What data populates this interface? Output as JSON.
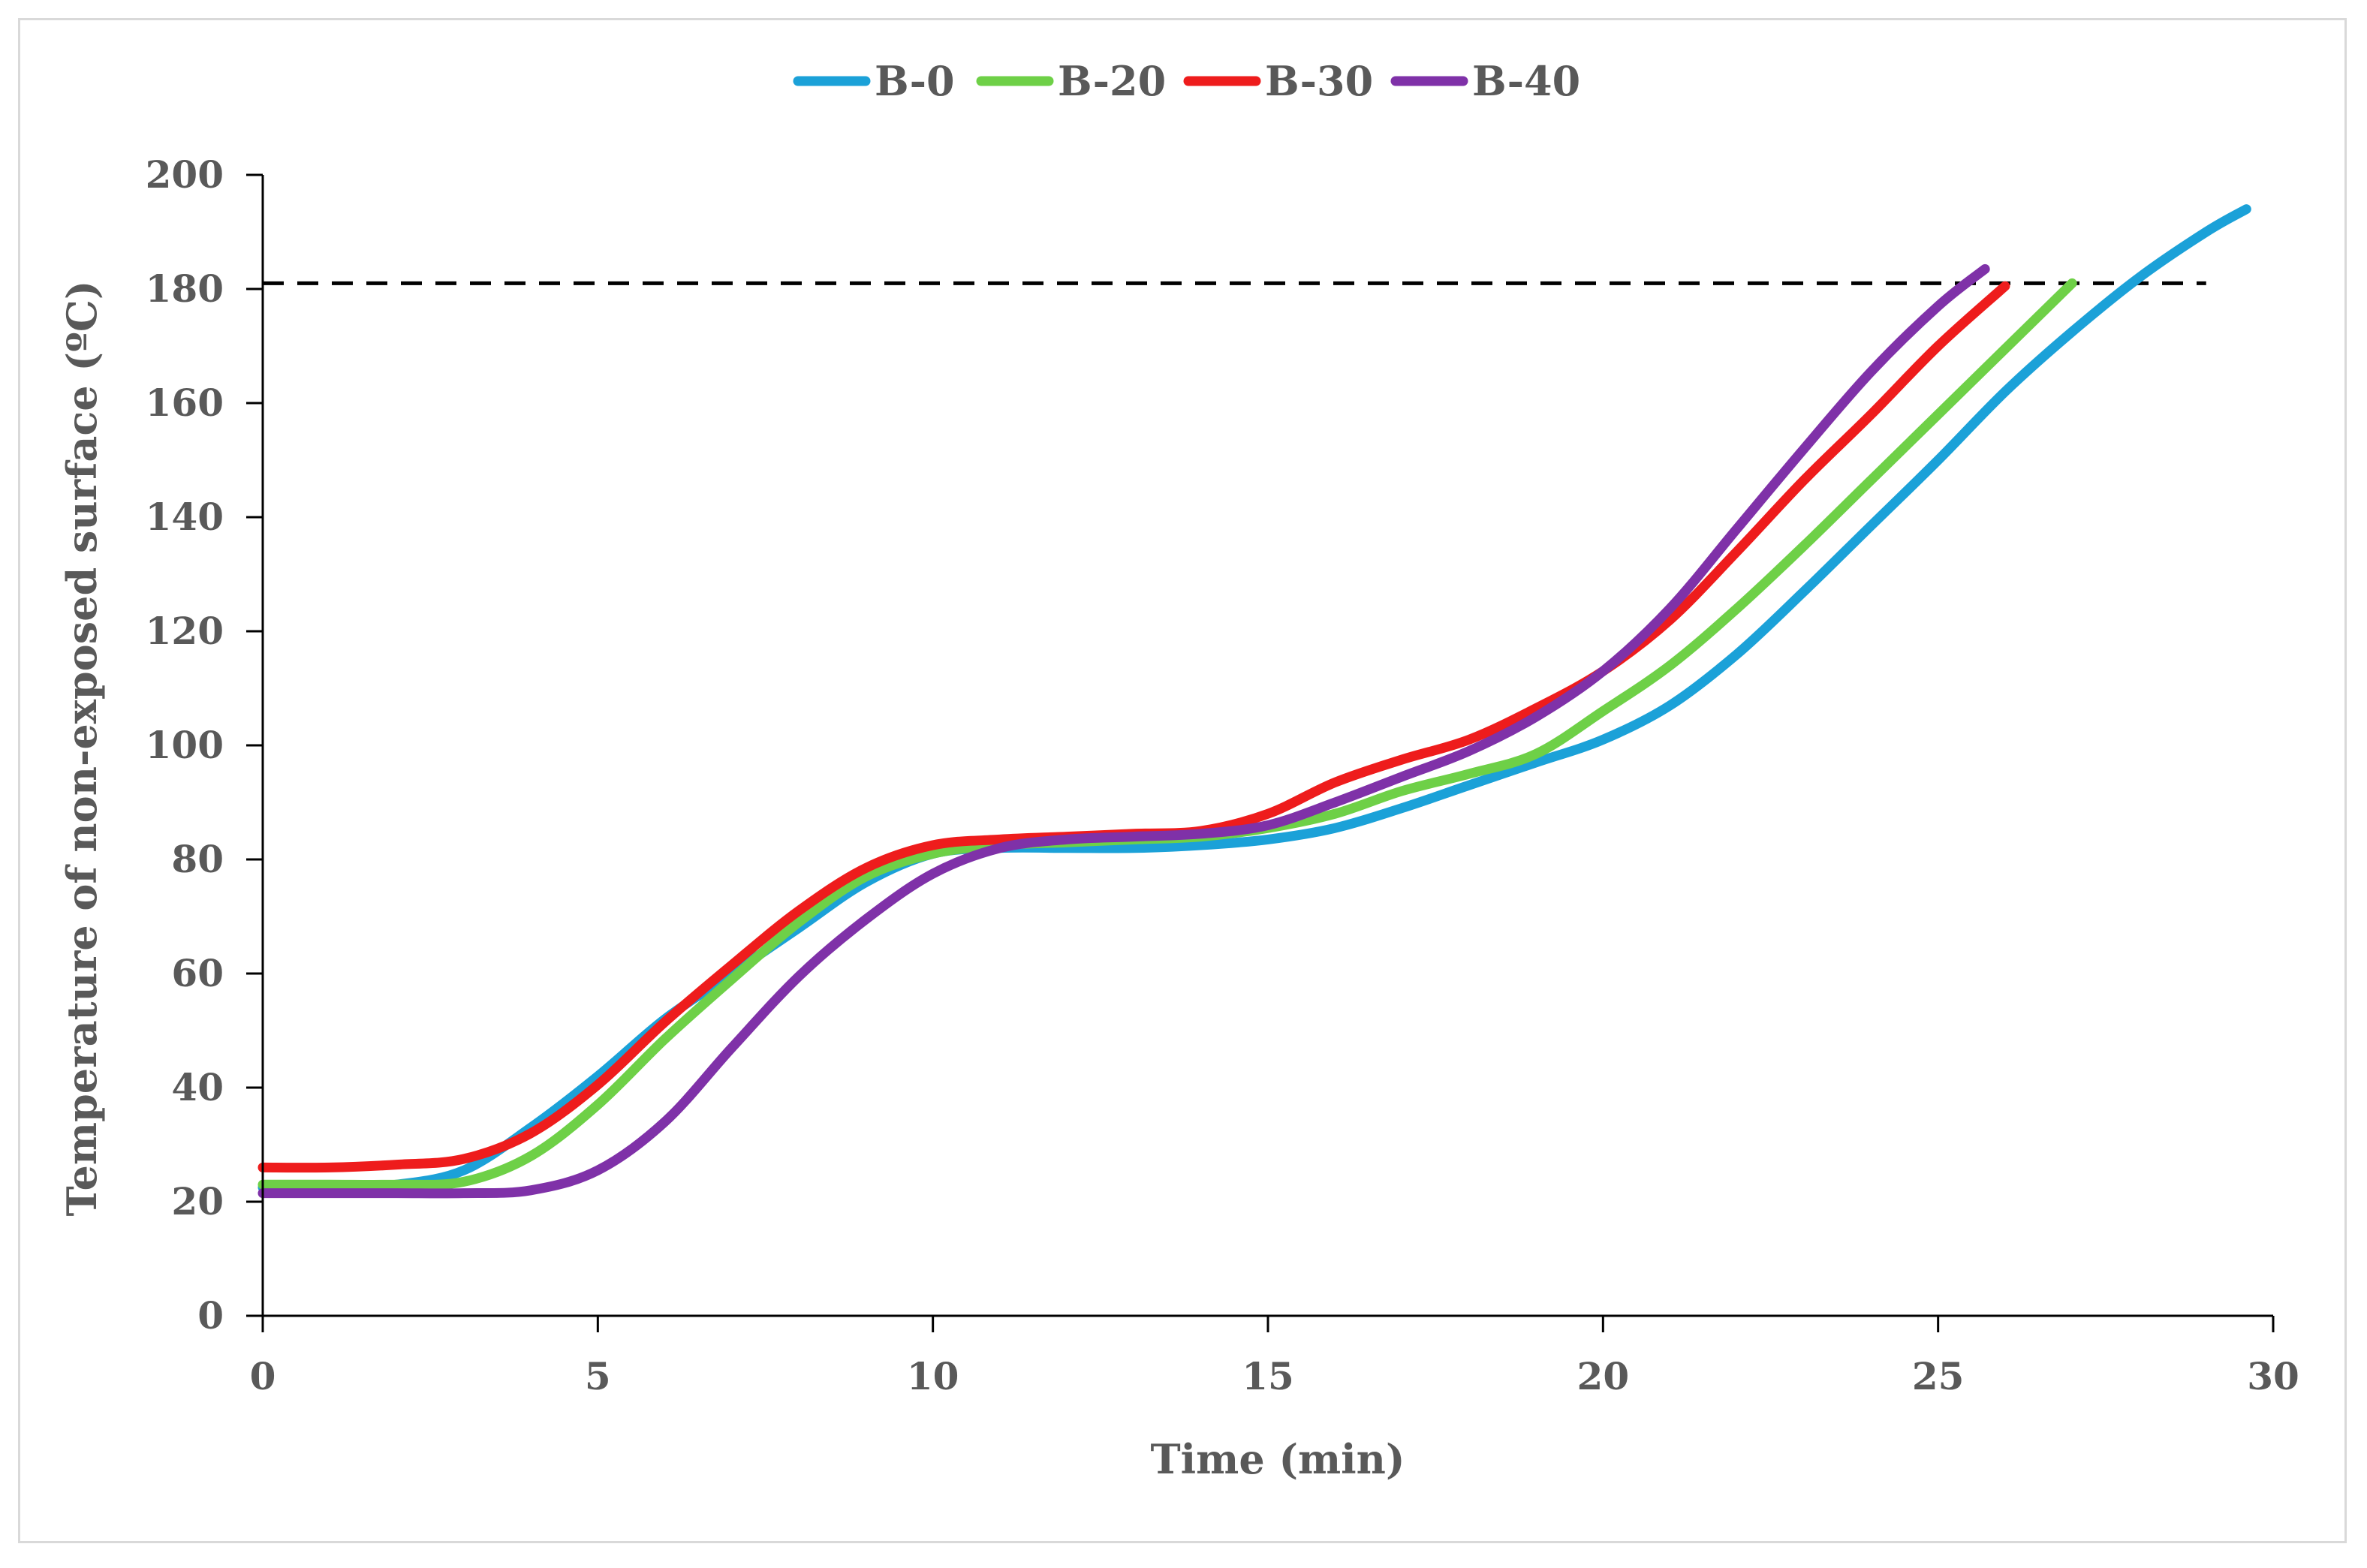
{
  "chart_data": {
    "type": "line",
    "title": "",
    "xlabel": "Time (min)",
    "ylabel": "Temperature of non-exposed surface (ºC)",
    "xlim": [
      0,
      30
    ],
    "ylim": [
      0,
      200
    ],
    "xticks": [
      0,
      5,
      10,
      15,
      20,
      25,
      30
    ],
    "yticks": [
      0,
      20,
      40,
      60,
      80,
      100,
      120,
      140,
      160,
      180,
      200
    ],
    "grid": false,
    "legend_position": "top-center",
    "reference_line": {
      "y": 181,
      "x_start": 0,
      "x_end": 29,
      "style": "dashed",
      "color": "#000000"
    },
    "series": [
      {
        "name": "B-0",
        "color": "#1ba1d8",
        "points": [
          [
            0,
            22.5
          ],
          [
            1,
            22.5
          ],
          [
            2,
            23
          ],
          [
            3,
            25.5
          ],
          [
            4,
            33
          ],
          [
            5,
            42
          ],
          [
            6,
            52
          ],
          [
            7,
            60
          ],
          [
            8,
            68
          ],
          [
            9,
            76
          ],
          [
            10,
            81
          ],
          [
            11,
            82
          ],
          [
            12,
            82
          ],
          [
            13,
            82
          ],
          [
            14,
            82.5
          ],
          [
            15,
            83.5
          ],
          [
            16,
            85.5
          ],
          [
            17,
            89
          ],
          [
            18,
            93
          ],
          [
            19,
            97
          ],
          [
            20,
            101
          ],
          [
            21,
            107
          ],
          [
            22,
            116
          ],
          [
            23,
            127
          ],
          [
            24,
            138.5
          ],
          [
            25,
            150
          ],
          [
            26,
            162
          ],
          [
            27,
            172.5
          ],
          [
            28,
            182
          ],
          [
            29,
            190
          ],
          [
            29.6,
            194
          ]
        ]
      },
      {
        "name": "B-20",
        "color": "#6ed047",
        "points": [
          [
            0,
            23
          ],
          [
            1,
            23
          ],
          [
            2,
            23
          ],
          [
            3,
            23.5
          ],
          [
            4,
            28
          ],
          [
            5,
            37
          ],
          [
            6,
            48.5
          ],
          [
            7,
            59
          ],
          [
            8,
            69
          ],
          [
            9,
            77
          ],
          [
            10,
            81
          ],
          [
            11,
            82.5
          ],
          [
            12,
            83
          ],
          [
            13,
            83.5
          ],
          [
            14,
            84
          ],
          [
            15,
            85.5
          ],
          [
            16,
            88
          ],
          [
            17,
            92
          ],
          [
            18,
            95
          ],
          [
            19,
            98.5
          ],
          [
            20,
            106
          ],
          [
            21,
            114
          ],
          [
            22,
            124
          ],
          [
            23,
            135
          ],
          [
            24,
            146.5
          ],
          [
            25,
            158
          ],
          [
            26,
            169.5
          ],
          [
            27,
            181
          ]
        ]
      },
      {
        "name": "B-30",
        "color": "#ee1c1c",
        "points": [
          [
            0,
            26
          ],
          [
            1,
            26
          ],
          [
            2,
            26.5
          ],
          [
            3,
            27.5
          ],
          [
            4,
            32
          ],
          [
            5,
            40.5
          ],
          [
            6,
            51.5
          ],
          [
            7,
            61.5
          ],
          [
            8,
            71
          ],
          [
            9,
            78.5
          ],
          [
            10,
            82.5
          ],
          [
            11,
            83.5
          ],
          [
            12,
            84
          ],
          [
            13,
            84.5
          ],
          [
            14,
            85
          ],
          [
            15,
            88
          ],
          [
            16,
            93.5
          ],
          [
            17,
            97.5
          ],
          [
            18,
            101
          ],
          [
            19,
            106.5
          ],
          [
            20,
            113
          ],
          [
            21,
            122
          ],
          [
            22,
            134
          ],
          [
            23,
            146.5
          ],
          [
            24,
            158
          ],
          [
            25,
            170
          ],
          [
            26,
            180.5
          ]
        ]
      },
      {
        "name": "B-40",
        "color": "#7f31a8",
        "points": [
          [
            0,
            21.5
          ],
          [
            1,
            21.5
          ],
          [
            2,
            21.5
          ],
          [
            3,
            21.5
          ],
          [
            4,
            22
          ],
          [
            5,
            25.5
          ],
          [
            6,
            34
          ],
          [
            7,
            47
          ],
          [
            8,
            59.5
          ],
          [
            9,
            69.5
          ],
          [
            10,
            77.5
          ],
          [
            11,
            82
          ],
          [
            12,
            83.5
          ],
          [
            13,
            84
          ],
          [
            14,
            84.5
          ],
          [
            15,
            86
          ],
          [
            16,
            90
          ],
          [
            17,
            94.5
          ],
          [
            18,
            99
          ],
          [
            19,
            105
          ],
          [
            20,
            113
          ],
          [
            21,
            124
          ],
          [
            22,
            138
          ],
          [
            23,
            152
          ],
          [
            24,
            165.5
          ],
          [
            25,
            177
          ],
          [
            25.7,
            183.5
          ]
        ]
      }
    ]
  }
}
